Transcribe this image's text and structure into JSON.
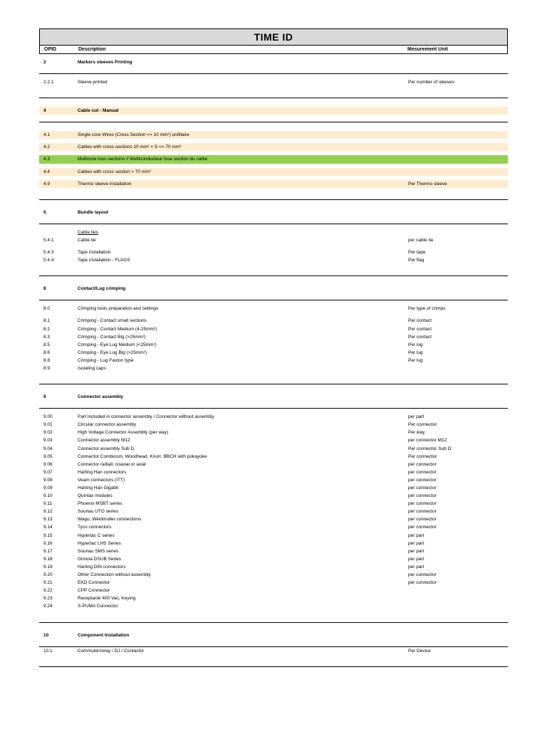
{
  "title": "TIME ID",
  "columns": {
    "opid": "OPID",
    "desc": "Description",
    "unit": "Mesurement Unit"
  },
  "colors": {
    "title_bg": "#d9d9d9",
    "cream": "#fdeccf",
    "green": "#92d050",
    "border": "#000000",
    "background": "#ffffff"
  },
  "sections": [
    {
      "header": {
        "opid": "2",
        "desc": "Markers sleeves Printing"
      },
      "rows": [
        {
          "opid": "2.2.1",
          "desc": "Sleeve printed",
          "unit": "Per number of sleeves"
        }
      ]
    },
    {
      "header": {
        "opid": "4",
        "desc": "Cable cut - Manual"
      },
      "cream_header": true,
      "rows": [
        {
          "opid": "4.1",
          "desc": "Single core Wires (Cross Section <= 10 mm²) unifilaire",
          "hl": "cream",
          "gap": true
        },
        {
          "opid": "4.2",
          "desc": "Cables with cross sections  10 mm² < S <= 70 mm²",
          "hl": "cream",
          "gap": true
        },
        {
          "opid": "4.3",
          "desc": "Multicore tous sections  // Multiconducteur tous section du cable",
          "hl": "green",
          "gap": true
        },
        {
          "opid": "4.4",
          "desc": "Cables with cross section > 70 mm²",
          "hl": "cream",
          "gap": true
        },
        {
          "opid": "4.9",
          "desc": "Thermo sleeve installation",
          "unit": "Per Thermo sleeve",
          "hl": "cream",
          "gap": true
        }
      ]
    },
    {
      "header": {
        "opid": "5",
        "desc": "Bundle layout"
      },
      "rows": [
        {
          "subtitle": "Cable ties"
        },
        {
          "opid": "5.4.1",
          "desc": "Cable tie",
          "unit": "per cable tie",
          "gap_after": true
        },
        {
          "opid": "5.4.3",
          "desc": "Tape installation",
          "unit": "Per tape"
        },
        {
          "opid": "5.4.4",
          "desc": "Tape installation - FLAGS",
          "unit": "Per flag"
        }
      ]
    },
    {
      "header": {
        "opid": "8",
        "desc": "Contact/Lug crimping"
      },
      "rows": [
        {
          "opid": "8.0",
          "desc": "Crimping tools preparation and settings",
          "unit": "Per type of crimps",
          "gap_after": true
        },
        {
          "opid": "8.1",
          "desc": "Crimping - Contact small sections",
          "unit": "Per contact"
        },
        {
          "opid": "8.2",
          "desc": "Crimping - Contact Medium (4-25mm²)",
          "unit": "Per contact"
        },
        {
          "opid": "8.3",
          "desc": "Crimping - Contact Big (>25mm²)",
          "unit": "Per contact"
        },
        {
          "opid": "8.5",
          "desc": "Crimping - Eye Lug Medium (<25mm²)",
          "unit": "Per lug"
        },
        {
          "opid": "8.6",
          "desc": "Crimping - Eye Lug Big (>25mm²)",
          "unit": "Per lug"
        },
        {
          "opid": "8.8",
          "desc": "Crimping - Lug Faston type",
          "unit": "Per lug"
        },
        {
          "opid": "8.9",
          "desc": "Isolating caps"
        }
      ]
    },
    {
      "header": {
        "opid": "9",
        "desc": "Connector assembly"
      },
      "rows": [
        {
          "opid": "9.00",
          "desc": "Part Included in connector assembly / Connector without assembly",
          "unit": "per part"
        },
        {
          "opid": "9.01",
          "desc": "Circular connector assembly",
          "unit": "Per connector"
        },
        {
          "opid": "9.02",
          "desc": "High Voltage Connector Assembly (per way)",
          "unit": "Per way"
        },
        {
          "opid": "9.03",
          "desc": "Connector assembly M12",
          "unit": "per connector M12"
        },
        {
          "opid": "9.04",
          "desc": "Connector assembly Sub D",
          "unit": "Per connector Sub D"
        },
        {
          "opid": "9.05",
          "desc": "Connector Combicom, Woodhead, Knorr, BBCH with pokayoke",
          "unit": "Per connector"
        },
        {
          "opid": "9.06",
          "desc": "Connector radiall, coaxial or axial",
          "unit": "per connector"
        },
        {
          "opid": "9.07",
          "desc": "Harting Han connectors",
          "unit": "per connector"
        },
        {
          "opid": "9.08",
          "desc": "Veam connectors (ITT)",
          "unit": "per connector"
        },
        {
          "opid": "9.09",
          "desc": "Harting Han Gigabit",
          "unit": "per connector"
        },
        {
          "opid": "9.10",
          "desc": "Quintax modules",
          "unit": "per connector"
        },
        {
          "opid": "9.11",
          "desc": "Phoenix MSBT series",
          "unit": "per connector"
        },
        {
          "opid": "9.12",
          "desc": "Souriau UTO series",
          "unit": "per connector"
        },
        {
          "opid": "9.13",
          "desc": "Wago, Weidmuller connections",
          "unit": "per connector"
        },
        {
          "opid": "9.14",
          "desc": "Tyco connectors",
          "unit": "per connector"
        },
        {
          "opid": "9.15",
          "desc": "Hypertac C series",
          "unit": "per part"
        },
        {
          "opid": "9.16",
          "desc": "Hypertac LHS Series",
          "unit": "per part"
        },
        {
          "opid": "9.17",
          "desc": "Souriau SMS series",
          "unit": "per part"
        },
        {
          "opid": "9.18",
          "desc": "Gimota DSUB Series",
          "unit": "per part"
        },
        {
          "opid": "9.19",
          "desc": "Harting DIN connectors",
          "unit": "per part"
        },
        {
          "opid": "9.20",
          "desc": "Other Connection without assembly",
          "unit": "per connector"
        },
        {
          "opid": "9.21",
          "desc": "EKD Connector",
          "unit": "per connector"
        },
        {
          "opid": "9.22",
          "desc": "CPP Connector"
        },
        {
          "opid": "9.23",
          "desc": "Receptacle 400 Vac, Keying"
        },
        {
          "opid": "9.24",
          "desc": "S-PUMA Connector"
        }
      ]
    },
    {
      "header": {
        "opid": "10",
        "desc": "Component Installation"
      },
      "no_gap_after_header": true,
      "rows": [
        {
          "opid": "10.1",
          "desc": "Commuter/relay / DJ / Contactor",
          "unit": "Per Device"
        }
      ]
    }
  ]
}
